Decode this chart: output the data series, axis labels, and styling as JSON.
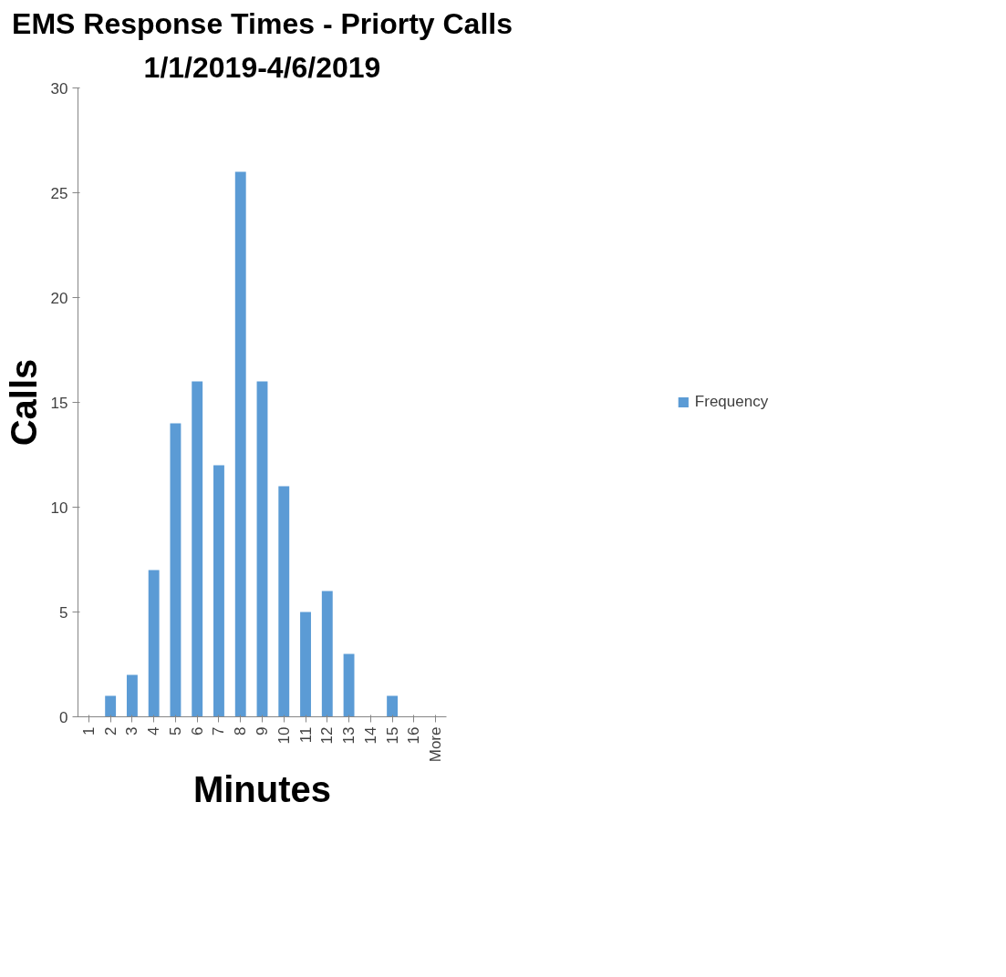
{
  "chart_data": {
    "type": "bar",
    "title": "EMS Response Times - Priorty Calls",
    "subtitle": "1/1/2019-4/6/2019",
    "xlabel": "Minutes",
    "ylabel": "Calls",
    "categories": [
      "1",
      "2",
      "3",
      "4",
      "5",
      "6",
      "7",
      "8",
      "9",
      "10",
      "11",
      "12",
      "13",
      "14",
      "15",
      "16",
      "More"
    ],
    "series": [
      {
        "name": "Frequency",
        "color": "#5b9bd5",
        "values": [
          0,
          1,
          2,
          7,
          14,
          16,
          12,
          26,
          16,
          11,
          5,
          6,
          3,
          0,
          1,
          0,
          0
        ]
      }
    ],
    "ylim": [
      0,
      30
    ],
    "yticks": [
      0,
      5,
      10,
      15,
      20,
      25,
      30
    ],
    "grid": false,
    "legend": "right"
  }
}
